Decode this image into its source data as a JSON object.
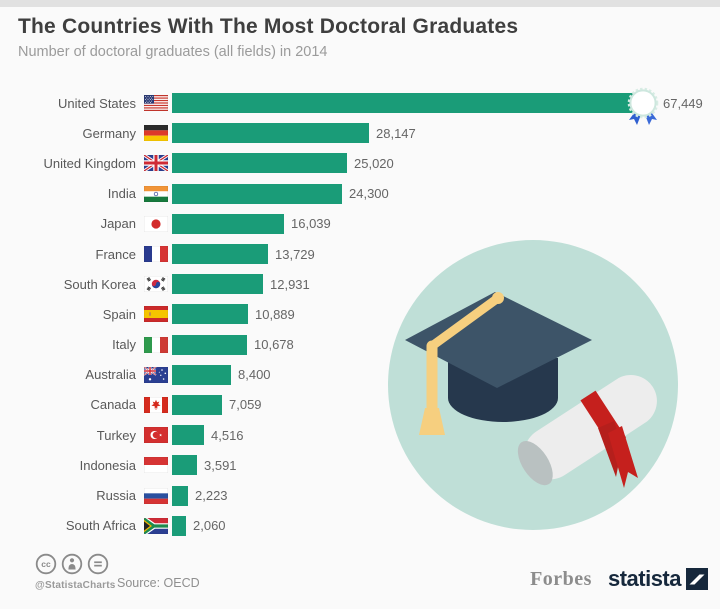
{
  "header": {
    "title": "The Countries With The Most Doctoral Graduates",
    "subtitle": "Number of doctoral graduates (all fields) in 2014"
  },
  "chart_data": {
    "type": "bar",
    "orientation": "horizontal",
    "title": "The Countries With The Most Doctoral Graduates",
    "subtitle": "Number of doctoral graduates (all fields) in 2014",
    "xlabel": "",
    "ylabel": "",
    "xlim": [
      0,
      67449
    ],
    "grid": false,
    "legend": false,
    "bar_color": "#1a9c78",
    "max_value": 67449,
    "rows": [
      {
        "country": "United States",
        "value": 67449,
        "display": "67,449",
        "flag": "us",
        "award_badge": true
      },
      {
        "country": "Germany",
        "value": 28147,
        "display": "28,147",
        "flag": "de"
      },
      {
        "country": "United Kingdom",
        "value": 25020,
        "display": "25,020",
        "flag": "gb"
      },
      {
        "country": "India",
        "value": 24300,
        "display": "24,300",
        "flag": "in"
      },
      {
        "country": "Japan",
        "value": 16039,
        "display": "16,039",
        "flag": "jp"
      },
      {
        "country": "France",
        "value": 13729,
        "display": "13,729",
        "flag": "fr"
      },
      {
        "country": "South Korea",
        "value": 12931,
        "display": "12,931",
        "flag": "kr"
      },
      {
        "country": "Spain",
        "value": 10889,
        "display": "10,889",
        "flag": "es"
      },
      {
        "country": "Italy",
        "value": 10678,
        "display": "10,678",
        "flag": "it"
      },
      {
        "country": "Australia",
        "value": 8400,
        "display": "8,400",
        "flag": "au"
      },
      {
        "country": "Canada",
        "value": 7059,
        "display": "7,059",
        "flag": "ca"
      },
      {
        "country": "Turkey",
        "value": 4516,
        "display": "4,516",
        "flag": "tr"
      },
      {
        "country": "Indonesia",
        "value": 3591,
        "display": "3,591",
        "flag": "id"
      },
      {
        "country": "Russia",
        "value": 2223,
        "display": "2,223",
        "flag": "ru"
      },
      {
        "country": "South Africa",
        "value": 2060,
        "display": "2,060",
        "flag": "za"
      }
    ]
  },
  "illustration": {
    "description": "graduation cap with tassel and diploma scroll in mint circle",
    "circle_color": "#bfdfd7"
  },
  "footer": {
    "handle": "@StatistaCharts",
    "source": "Source: OECD",
    "license_icons": [
      "cc-icon",
      "attribution-icon",
      "equals-icon"
    ],
    "brand_left": "Forbes",
    "brand_right": "statista"
  }
}
